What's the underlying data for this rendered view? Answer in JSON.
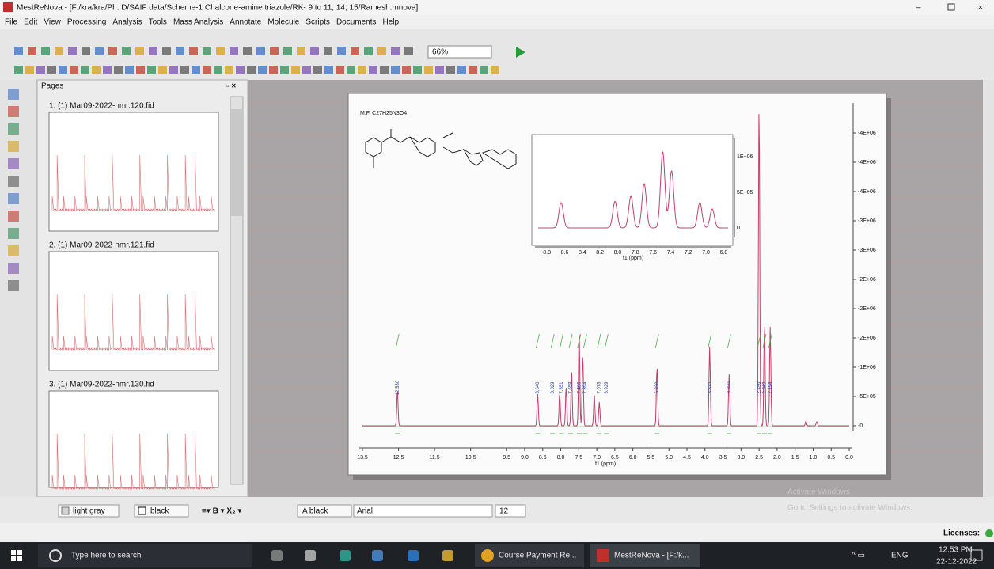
{
  "window": {
    "title": "MestReNova - [F:/kra/kra/Ph. D/SAIF data/Scheme-1 Chalcone-amine triazole/RK- 9 to 11, 14, 15/Ramesh.mnova]",
    "menu": [
      "File",
      "Edit",
      "View",
      "Processing",
      "Analysis",
      "Tools",
      "Mass Analysis",
      "Annotate",
      "Molecule",
      "Scripts",
      "Documents",
      "Help"
    ],
    "zoom": "66%"
  },
  "pages_panel": {
    "title": "Pages",
    "items": [
      "1. (1) Mar09-2022-nmr.120.fid",
      "2. (1) Mar09-2022-nmr.121.fid",
      "3. (1) Mar09-2022-nmr.130.fid"
    ]
  },
  "spectrum": {
    "formula": "M.F. C27H25N3O4",
    "x_label": "f1 (ppm)",
    "x_ticks": [
      "13.5",
      "12.5",
      "11.5",
      "10.5",
      "9.5",
      "9.0",
      "8.5",
      "8.0",
      "7.5",
      "7.0",
      "6.5",
      "6.0",
      "5.5",
      "5.0",
      "4.5",
      "4.0",
      "3.5",
      "3.0",
      "2.5",
      "2.0",
      "1.5",
      "1.0",
      "0.5",
      "0.0"
    ],
    "y_ticks": [
      "-4E+06",
      "-4E+06",
      "-4E+06",
      "-3E+06",
      "-3E+06",
      "-2E+06",
      "-2E+06",
      "-2E+06",
      "-1E+06",
      "-5E+05",
      "-0"
    ],
    "peak_labels": [
      "12.530",
      "8.640",
      "8.029",
      "7.851",
      "7.658",
      "7.486",
      "7.394",
      "7.073",
      "6.929",
      "5.330",
      "3.875",
      "3.330",
      "2.496",
      "2.349",
      "2.194"
    ],
    "inset": {
      "x_label": "f1 (ppm)",
      "x_ticks": [
        "8.8",
        "8.6",
        "8.4",
        "8.2",
        "8.0",
        "7.8",
        "7.6",
        "7.4",
        "7.2",
        "7.0",
        "6.8"
      ],
      "y_ticks": [
        "1E+06",
        "5E+05",
        "0"
      ]
    }
  },
  "format_bar": {
    "fill": "light gray",
    "line": "black",
    "font_color": "A black",
    "font": "Arial",
    "size": "12"
  },
  "watermark": {
    "title": "Activate Windows",
    "text": "Go to Settings to activate Windows."
  },
  "status": {
    "licenses": "Licenses:"
  },
  "taskbar": {
    "search": "Type here to search",
    "apps": [
      "Course Payment Re...",
      "MestReNova - [F:/k..."
    ],
    "language": "ENG",
    "time": "12:53 PM",
    "date": "22-12-2022"
  }
}
